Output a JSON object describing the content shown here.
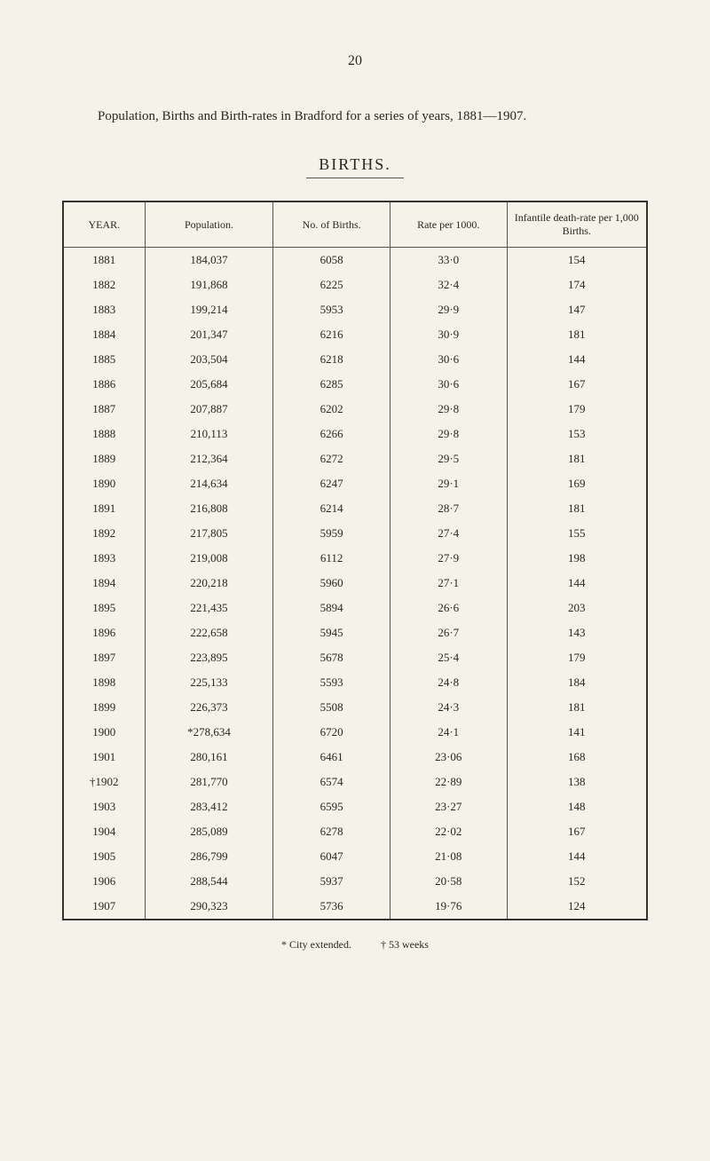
{
  "page_number": "20",
  "intro": "Population, Births and Birth-rates in Bradford for a series of years, 1881—1907.",
  "table_title": "BIRTHS.",
  "columns": [
    "YEAR.",
    "Population.",
    "No. of Births.",
    "Rate per 1000.",
    "Infantile death-rate per 1,000 Births."
  ],
  "rows": [
    {
      "year": "1881",
      "pop": "184,037",
      "births": "6058",
      "rate": "33·0",
      "idr": "154"
    },
    {
      "year": "1882",
      "pop": "191,868",
      "births": "6225",
      "rate": "32·4",
      "idr": "174"
    },
    {
      "year": "1883",
      "pop": "199,214",
      "births": "5953",
      "rate": "29·9",
      "idr": "147"
    },
    {
      "year": "1884",
      "pop": "201,347",
      "births": "6216",
      "rate": "30·9",
      "idr": "181"
    },
    {
      "year": "1885",
      "pop": "203,504",
      "births": "6218",
      "rate": "30·6",
      "idr": "144"
    },
    {
      "year": "1886",
      "pop": "205,684",
      "births": "6285",
      "rate": "30·6",
      "idr": "167"
    },
    {
      "year": "1887",
      "pop": "207,887",
      "births": "6202",
      "rate": "29·8",
      "idr": "179"
    },
    {
      "year": "1888",
      "pop": "210,113",
      "births": "6266",
      "rate": "29·8",
      "idr": "153"
    },
    {
      "year": "1889",
      "pop": "212,364",
      "births": "6272",
      "rate": "29·5",
      "idr": "181"
    },
    {
      "year": "1890",
      "pop": "214,634",
      "births": "6247",
      "rate": "29·1",
      "idr": "169"
    },
    {
      "year": "1891",
      "pop": "216,808",
      "births": "6214",
      "rate": "28·7",
      "idr": "181"
    },
    {
      "year": "1892",
      "pop": "217,805",
      "births": "5959",
      "rate": "27·4",
      "idr": "155"
    },
    {
      "year": "1893",
      "pop": "219,008",
      "births": "6112",
      "rate": "27·9",
      "idr": "198"
    },
    {
      "year": "1894",
      "pop": "220,218",
      "births": "5960",
      "rate": "27·1",
      "idr": "144"
    },
    {
      "year": "1895",
      "pop": "221,435",
      "births": "5894",
      "rate": "26·6",
      "idr": "203"
    },
    {
      "year": "1896",
      "pop": "222,658",
      "births": "5945",
      "rate": "26·7",
      "idr": "143"
    },
    {
      "year": "1897",
      "pop": "223,895",
      "births": "5678",
      "rate": "25·4",
      "idr": "179"
    },
    {
      "year": "1898",
      "pop": "225,133",
      "births": "5593",
      "rate": "24·8",
      "idr": "184"
    },
    {
      "year": "1899",
      "pop": "226,373",
      "births": "5508",
      "rate": "24·3",
      "idr": "181"
    },
    {
      "year": "1900",
      "pop": "*278,634",
      "births": "6720",
      "rate": "24·1",
      "idr": "141"
    },
    {
      "year": "1901",
      "pop": "280,161",
      "births": "6461",
      "rate": "23·06",
      "idr": "168"
    },
    {
      "year": "†1902",
      "pop": "281,770",
      "births": "6574",
      "rate": "22·89",
      "idr": "138"
    },
    {
      "year": "1903",
      "pop": "283,412",
      "births": "6595",
      "rate": "23·27",
      "idr": "148"
    },
    {
      "year": "1904",
      "pop": "285,089",
      "births": "6278",
      "rate": "22·02",
      "idr": "167"
    },
    {
      "year": "1905",
      "pop": "286,799",
      "births": "6047",
      "rate": "21·08",
      "idr": "144"
    },
    {
      "year": "1906",
      "pop": "288,544",
      "births": "5937",
      "rate": "20·58",
      "idr": "152"
    },
    {
      "year": "1907",
      "pop": "290,323",
      "births": "5736",
      "rate": "19·76",
      "idr": "124"
    }
  ],
  "footnote_1": "* City extended.",
  "footnote_2": "† 53 weeks",
  "styling": {
    "background_color": "#f5f2ea",
    "text_color": "#2a2620",
    "border_color": "#333",
    "font_family": "serif"
  }
}
